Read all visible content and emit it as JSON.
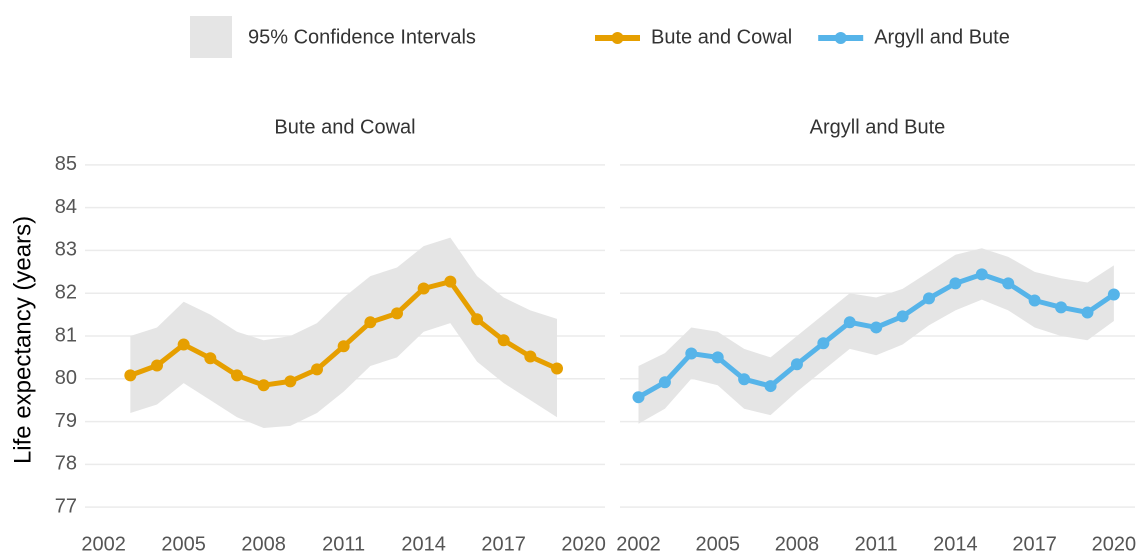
{
  "chart_data": [
    {
      "type": "line",
      "title": "Bute and Cowal",
      "y_label": "Life expectancy (years)",
      "band_label": "95% Confidence Intervals",
      "x": [
        2003,
        2004,
        2005,
        2006,
        2007,
        2008,
        2009,
        2010,
        2011,
        2012,
        2013,
        2014,
        2015,
        2016,
        2017,
        2018,
        2019
      ],
      "series": [
        {
          "name": "Bute and Cowal",
          "color": "#e69f00",
          "values": [
            80.08,
            80.31,
            80.8,
            80.48,
            80.08,
            79.85,
            79.94,
            80.22,
            80.76,
            81.32,
            81.53,
            82.11,
            82.27,
            81.39,
            80.9,
            80.52,
            80.24
          ],
          "upper": [
            81.0,
            81.2,
            81.8,
            81.5,
            81.1,
            80.9,
            81.0,
            81.3,
            81.9,
            82.4,
            82.6,
            83.1,
            83.3,
            82.4,
            81.9,
            81.6,
            81.4
          ],
          "lower": [
            79.2,
            79.4,
            79.9,
            79.5,
            79.1,
            78.85,
            78.9,
            79.2,
            79.7,
            80.3,
            80.5,
            81.1,
            81.3,
            80.4,
            79.9,
            79.5,
            79.1
          ]
        }
      ],
      "band_color": "#e5e5e5",
      "xlim": [
        2001.3,
        2020.8
      ],
      "ylim": [
        76.7,
        85.3
      ],
      "xticks": [
        2002,
        2005,
        2008,
        2011,
        2014,
        2017,
        2020
      ],
      "yticks": [
        77,
        78,
        79,
        80,
        81,
        82,
        83,
        84,
        85
      ],
      "grid": true
    },
    {
      "type": "line",
      "title": "Argyll and Bute",
      "x": [
        2002,
        2003,
        2004,
        2005,
        2006,
        2007,
        2008,
        2009,
        2010,
        2011,
        2012,
        2013,
        2014,
        2015,
        2016,
        2017,
        2018,
        2019,
        2020
      ],
      "series": [
        {
          "name": "Argyll and Bute",
          "color": "#56b4e9",
          "values": [
            79.57,
            79.92,
            80.59,
            80.5,
            79.99,
            79.83,
            80.34,
            80.83,
            81.32,
            81.2,
            81.46,
            81.88,
            82.23,
            82.44,
            82.23,
            81.83,
            81.67,
            81.55,
            81.97
          ],
          "upper": [
            80.3,
            80.6,
            81.2,
            81.1,
            80.7,
            80.5,
            81.0,
            81.5,
            82.0,
            81.9,
            82.1,
            82.5,
            82.9,
            83.05,
            82.85,
            82.5,
            82.35,
            82.25,
            82.65
          ],
          "lower": [
            78.95,
            79.3,
            80.0,
            79.85,
            79.3,
            79.15,
            79.7,
            80.2,
            80.7,
            80.55,
            80.8,
            81.25,
            81.6,
            81.85,
            81.6,
            81.2,
            81.0,
            80.9,
            81.35
          ]
        }
      ],
      "band_color": "#e5e5e5",
      "xlim": [
        2001.3,
        2020.8
      ],
      "ylim": [
        76.7,
        85.3
      ],
      "xticks": [
        2002,
        2005,
        2008,
        2011,
        2014,
        2017,
        2020
      ],
      "yticks": [
        77,
        78,
        79,
        80,
        81,
        82,
        83,
        84,
        85
      ],
      "grid": true
    }
  ]
}
